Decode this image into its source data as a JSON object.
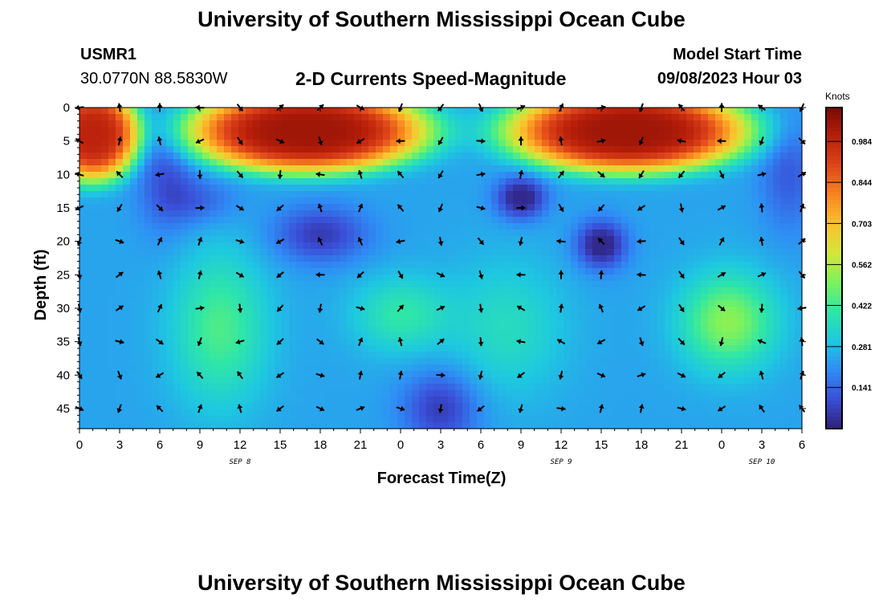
{
  "header": {
    "title": "University of Southern Mississippi Ocean Cube",
    "station_id": "USMR1",
    "station_coords": "30.0770N  88.5830W",
    "plot_subtitle": "2-D Currents Speed-Magnitude",
    "model_start_label": "Model Start Time",
    "model_start_value": "09/08/2023 Hour 03"
  },
  "footer": {
    "title": "University of Southern Mississippi Ocean Cube"
  },
  "chart_data": {
    "type": "heatmap",
    "title": "2-D Currents Speed-Magnitude",
    "xlabel": "Forecast Time(Z)",
    "ylabel": "Depth (ft)",
    "x_tick_labels": [
      "0",
      "3",
      "6",
      "9",
      "12",
      "15",
      "18",
      "21",
      "0",
      "3",
      "6",
      "9",
      "12",
      "15",
      "18",
      "21",
      "0",
      "3",
      "6"
    ],
    "x_date_labels": [
      {
        "label": "SEP 8",
        "hour_index": 12
      },
      {
        "label": "SEP 9",
        "hour_index": 36
      },
      {
        "label": "SEP 10",
        "hour_index": 51
      }
    ],
    "xlim_hours": [
      0,
      54
    ],
    "y_ticks": [
      0,
      5,
      10,
      15,
      20,
      25,
      30,
      35,
      40,
      45
    ],
    "ylim": [
      0,
      48
    ],
    "y_inverted": true,
    "colorbar": {
      "label": "Knots",
      "ticks": [
        "0.984",
        "0.844",
        "0.703",
        "0.562",
        "0.422",
        "0.281",
        "0.141"
      ],
      "tick_values": [
        0.984,
        0.844,
        0.703,
        0.562,
        0.422,
        0.281,
        0.141
      ],
      "range": [
        0.0,
        1.1
      ],
      "colors": [
        "#2f1f7a",
        "#3a4fd8",
        "#2f8cf5",
        "#1ec8e0",
        "#2ee6a8",
        "#7cf25c",
        "#d4e63a",
        "#fbc22e",
        "#f8871e",
        "#e0461a",
        "#b81f0a",
        "#7a0a03"
      ]
    },
    "arrow_rows_depth_ft": [
      0,
      5,
      10,
      15,
      20,
      25,
      30,
      35,
      40,
      45
    ],
    "arrow_cols_hours": [
      0,
      3,
      6,
      9,
      12,
      15,
      18,
      21,
      24,
      27,
      30,
      33,
      36,
      39,
      42,
      45,
      48,
      51,
      54
    ],
    "speed_blobs": [
      {
        "hour": 1,
        "depth": 4,
        "sx": 2.5,
        "sy": 5,
        "amp": 0.75
      },
      {
        "hour": 17,
        "depth": 3.5,
        "sx": 6.5,
        "sy": 4.5,
        "amp": 0.8
      },
      {
        "hour": 41,
        "depth": 3.5,
        "sx": 6.5,
        "sy": 4.5,
        "amp": 0.8
      },
      {
        "hour": 10.5,
        "depth": 33,
        "sx": 2.5,
        "sy": 8,
        "amp": 0.2
      },
      {
        "hour": 24,
        "depth": 31,
        "sx": 2.5,
        "sy": 4,
        "amp": 0.16
      },
      {
        "hour": 32,
        "depth": 33,
        "sx": 3,
        "sy": 7,
        "amp": 0.12
      },
      {
        "hour": 48.5,
        "depth": 32,
        "sx": 2.5,
        "sy": 5,
        "amp": 0.28
      },
      {
        "hour": 18,
        "depth": 19,
        "sx": 2.5,
        "sy": 3,
        "amp": -0.18
      },
      {
        "hour": 33,
        "depth": 13.5,
        "sx": 1.3,
        "sy": 2.2,
        "amp": -0.26
      },
      {
        "hour": 39,
        "depth": 20.5,
        "sx": 1.3,
        "sy": 2.5,
        "amp": -0.26
      },
      {
        "hour": 27,
        "depth": 45,
        "sx": 2,
        "sy": 4,
        "amp": -0.18
      },
      {
        "hour": 6.5,
        "depth": 10,
        "sx": 1.5,
        "sy": 6,
        "amp": -0.13
      },
      {
        "hour": 9,
        "depth": 14,
        "sx": 2,
        "sy": 2.5,
        "amp": -0.1
      },
      {
        "hour": 53,
        "depth": 10,
        "sx": 1.5,
        "sy": 6,
        "amp": -0.12
      }
    ],
    "speed_base": 0.24
  }
}
